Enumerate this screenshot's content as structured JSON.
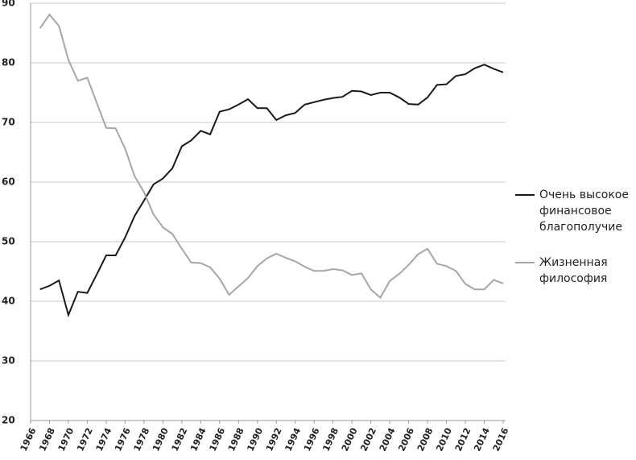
{
  "chart_data": {
    "type": "line",
    "x": [
      1967,
      1968,
      1969,
      1970,
      1971,
      1972,
      1973,
      1974,
      1975,
      1976,
      1977,
      1978,
      1979,
      1980,
      1981,
      1982,
      1983,
      1984,
      1985,
      1986,
      1987,
      1988,
      1989,
      1990,
      1991,
      1992,
      1993,
      1994,
      1995,
      1996,
      1997,
      1998,
      1999,
      2000,
      2001,
      2002,
      2003,
      2004,
      2005,
      2006,
      2007,
      2008,
      2009,
      2010,
      2011,
      2012,
      2013,
      2014,
      2015,
      2016
    ],
    "series": [
      {
        "name": "Очень высокое финансовое благополучие",
        "color": "#1a1a1a",
        "values": [
          42.0,
          42.6,
          43.5,
          37.7,
          41.6,
          41.4,
          44.5,
          47.7,
          47.7,
          50.7,
          54.3,
          56.9,
          59.6,
          60.6,
          62.3,
          66.0,
          67.0,
          68.6,
          68.0,
          71.8,
          72.2,
          73.0,
          73.9,
          72.4,
          72.4,
          70.4,
          71.2,
          71.6,
          73.0,
          73.4,
          73.8,
          74.1,
          74.3,
          75.3,
          75.2,
          74.6,
          75.0,
          75.0,
          74.2,
          73.1,
          73.0,
          74.2,
          76.3,
          76.4,
          77.8,
          78.1,
          79.1,
          79.7,
          79.0,
          78.4
        ]
      },
      {
        "name": "Жизненная философия",
        "color": "#a6a6a6",
        "values": [
          85.8,
          88.1,
          86.2,
          80.5,
          77.0,
          77.5,
          73.3,
          69.1,
          69.0,
          65.6,
          61.0,
          58.3,
          54.6,
          52.4,
          51.3,
          48.8,
          46.5,
          46.4,
          45.7,
          43.8,
          41.1,
          42.5,
          43.9,
          45.9,
          47.2,
          48.0,
          47.3,
          46.7,
          45.8,
          45.1,
          45.1,
          45.4,
          45.2,
          44.4,
          44.7,
          42.0,
          40.6,
          43.4,
          44.6,
          46.1,
          47.9,
          48.8,
          46.3,
          45.9,
          45.1,
          42.9,
          42.0,
          42.0,
          43.6,
          43.0
        ]
      }
    ],
    "xlim": [
      1966,
      2016
    ],
    "xticks": [
      1966,
      1968,
      1970,
      1972,
      1974,
      1976,
      1978,
      1980,
      1982,
      1984,
      1986,
      1988,
      1990,
      1992,
      1994,
      1996,
      1998,
      2000,
      2002,
      2004,
      2006,
      2008,
      2010,
      2012,
      2014,
      2016
    ],
    "ylim": [
      20,
      90
    ],
    "yticks": [
      20,
      30,
      40,
      50,
      60,
      70,
      80,
      90
    ],
    "grid": true,
    "legend": "right"
  }
}
